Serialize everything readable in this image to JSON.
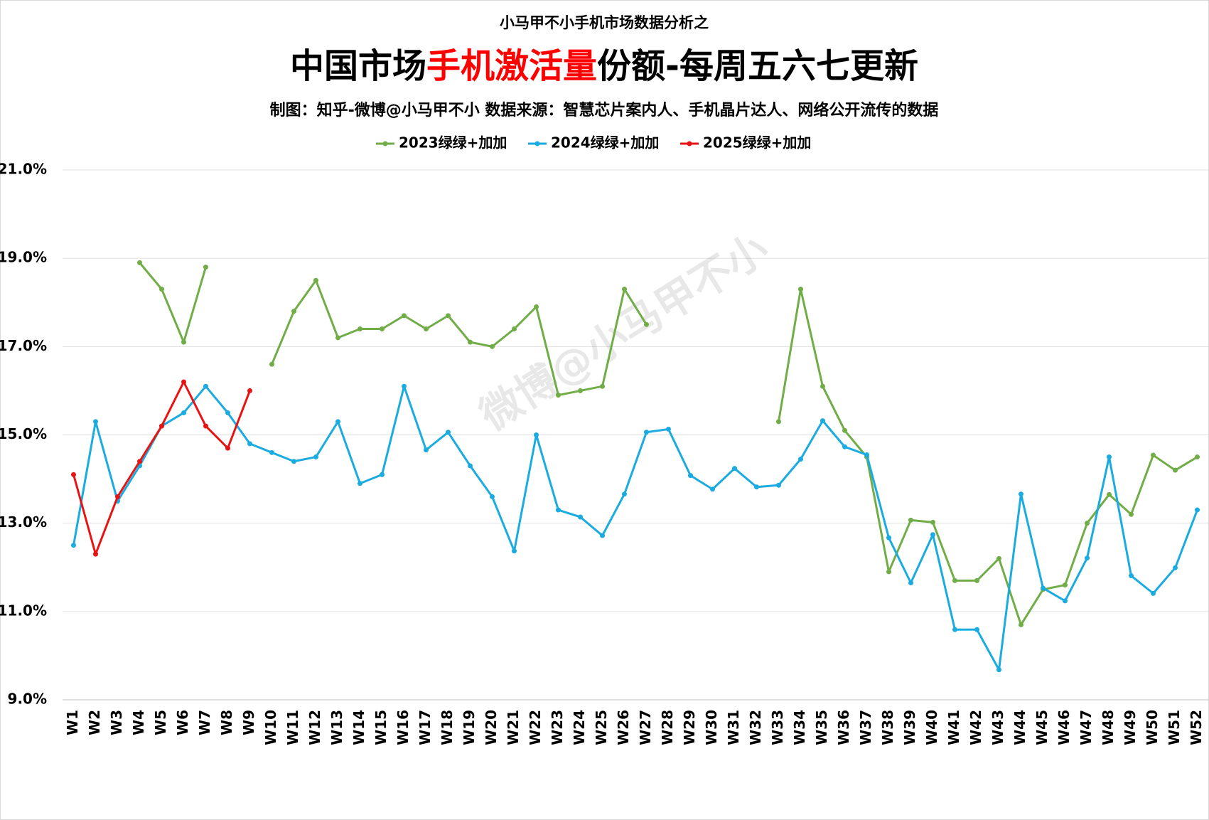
{
  "chart_data": {
    "type": "line",
    "supertitle": "小马甲不小手机市场数据分析之",
    "title": [
      {
        "text": "中国市场",
        "color": "#000000"
      },
      {
        "text": "手机激活量",
        "color": "#ff0000"
      },
      {
        "text": "份额-每周五六七更新",
        "color": "#000000"
      }
    ],
    "subtitle": "制图：知乎-微博@小马甲不小  数据来源：智慧芯片案内人、手机晶片达人、网络公开流传的数据",
    "watermark": "微博@小马甲不小",
    "categories": [
      "W1",
      "W2",
      "W3",
      "W4",
      "W5",
      "W6",
      "W7",
      "W8",
      "W9",
      "W10",
      "W11",
      "W12",
      "W13",
      "W14",
      "W15",
      "W16",
      "W17",
      "W18",
      "W19",
      "W20",
      "W21",
      "W22",
      "W23",
      "W24",
      "W25",
      "W26",
      "W27",
      "W28",
      "W29",
      "W30",
      "W31",
      "W32",
      "W33",
      "W34",
      "W35",
      "W36",
      "W37",
      "W38",
      "W39",
      "W40",
      "W41",
      "W42",
      "W43",
      "W44",
      "W45",
      "W46",
      "W47",
      "W48",
      "W49",
      "W50",
      "W51",
      "W52"
    ],
    "series": [
      {
        "name": "2023绿绿+加加",
        "color": "#70ad47",
        "values": [
          null,
          null,
          null,
          18.9,
          18.3,
          17.1,
          18.8,
          null,
          null,
          16.6,
          17.8,
          18.5,
          17.2,
          17.4,
          17.4,
          17.7,
          17.4,
          17.7,
          17.1,
          17.0,
          17.4,
          17.9,
          15.9,
          16.0,
          16.1,
          18.3,
          17.5,
          null,
          null,
          null,
          null,
          null,
          15.3,
          18.3,
          16.1,
          15.1,
          14.5,
          11.9,
          13.07,
          13.02,
          11.7,
          11.7,
          12.2,
          10.7,
          11.5,
          11.6,
          13.0,
          13.65,
          13.2,
          14.54,
          14.2,
          14.5
        ]
      },
      {
        "name": "2024绿绿+加加",
        "color": "#1aabe0",
        "values": [
          12.5,
          15.3,
          13.5,
          14.3,
          15.2,
          15.5,
          16.1,
          15.5,
          14.8,
          14.6,
          14.4,
          14.5,
          15.3,
          13.9,
          14.1,
          16.1,
          14.66,
          15.06,
          14.3,
          13.6,
          12.37,
          15.0,
          13.3,
          13.14,
          12.72,
          13.66,
          15.06,
          15.13,
          14.08,
          13.77,
          14.24,
          13.82,
          13.86,
          14.45,
          15.32,
          14.73,
          14.55,
          12.67,
          11.65,
          12.74,
          10.59,
          10.59,
          9.68,
          13.66,
          11.53,
          11.24,
          12.21,
          14.5,
          11.81,
          11.41,
          11.99,
          13.3
        ]
      },
      {
        "name": "2025绿绿+加加",
        "color": "#e81414",
        "values": [
          14.1,
          12.3,
          13.6,
          14.4,
          15.2,
          16.2,
          15.2,
          14.7,
          16.0,
          null,
          null,
          null,
          null,
          null,
          null,
          null,
          null,
          null,
          null,
          null,
          null,
          null,
          null,
          null,
          null,
          null,
          null,
          null,
          null,
          null,
          null,
          null,
          null,
          null,
          null,
          null,
          null,
          null,
          null,
          null,
          null,
          null,
          null,
          null,
          null,
          null,
          null,
          null,
          null,
          null,
          null,
          null
        ]
      }
    ],
    "ylim": [
      9,
      21
    ],
    "yticks": [
      {
        "value": 9,
        "label": "9.0%"
      },
      {
        "value": 11,
        "label": "11.0%"
      },
      {
        "value": 13,
        "label": "13.0%"
      },
      {
        "value": 15,
        "label": "15.0%"
      },
      {
        "value": 17,
        "label": "17.0%"
      },
      {
        "value": 19,
        "label": "19.0%"
      },
      {
        "value": 21,
        "label": "21.0%"
      }
    ],
    "grid": true,
    "legend": "top"
  }
}
